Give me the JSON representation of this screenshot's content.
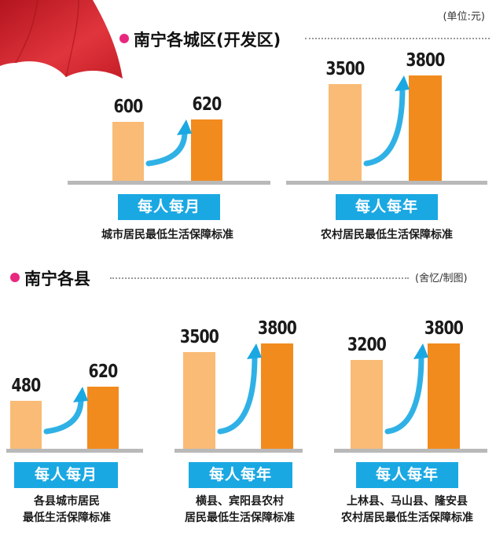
{
  "unit_note": "(单位:元)",
  "credit": "(舍忆/制图)",
  "chart_data": [
    {
      "type": "bar",
      "section": "南宁各城区(开发区)",
      "categories": [
        "",
        ""
      ],
      "values": [
        600,
        620
      ],
      "period_label": "每人每月",
      "caption": "城市居民最低生活保障标准"
    },
    {
      "type": "bar",
      "section": "南宁各城区(开发区)",
      "categories": [
        "",
        ""
      ],
      "values": [
        3500,
        3800
      ],
      "period_label": "每人每年",
      "caption": "农村居民最低生活保障标准"
    },
    {
      "type": "bar",
      "section": "南宁各县",
      "categories": [
        "",
        ""
      ],
      "values": [
        480,
        620
      ],
      "period_label": "每人每月",
      "caption": "各县城市居民\n最低生活保障标准"
    },
    {
      "type": "bar",
      "section": "南宁各县",
      "categories": [
        "",
        ""
      ],
      "values": [
        3500,
        3800
      ],
      "period_label": "每人每年",
      "caption": "横县、宾阳县农村\n居民最低生活保障标准"
    },
    {
      "type": "bar",
      "section": "南宁各县",
      "categories": [
        "",
        ""
      ],
      "values": [
        3200,
        3800
      ],
      "period_label": "每人每年",
      "caption": "上林县、马山县、隆安县\n农村居民最低生活保障标准"
    }
  ],
  "colors": {
    "before_bar": "#f9bb76",
    "after_bar": "#f28b1e",
    "badge": "#1aa8e3",
    "bullet": "#e8287e",
    "arrow": "#1aa8e3",
    "umbrella": "#d9232e"
  }
}
